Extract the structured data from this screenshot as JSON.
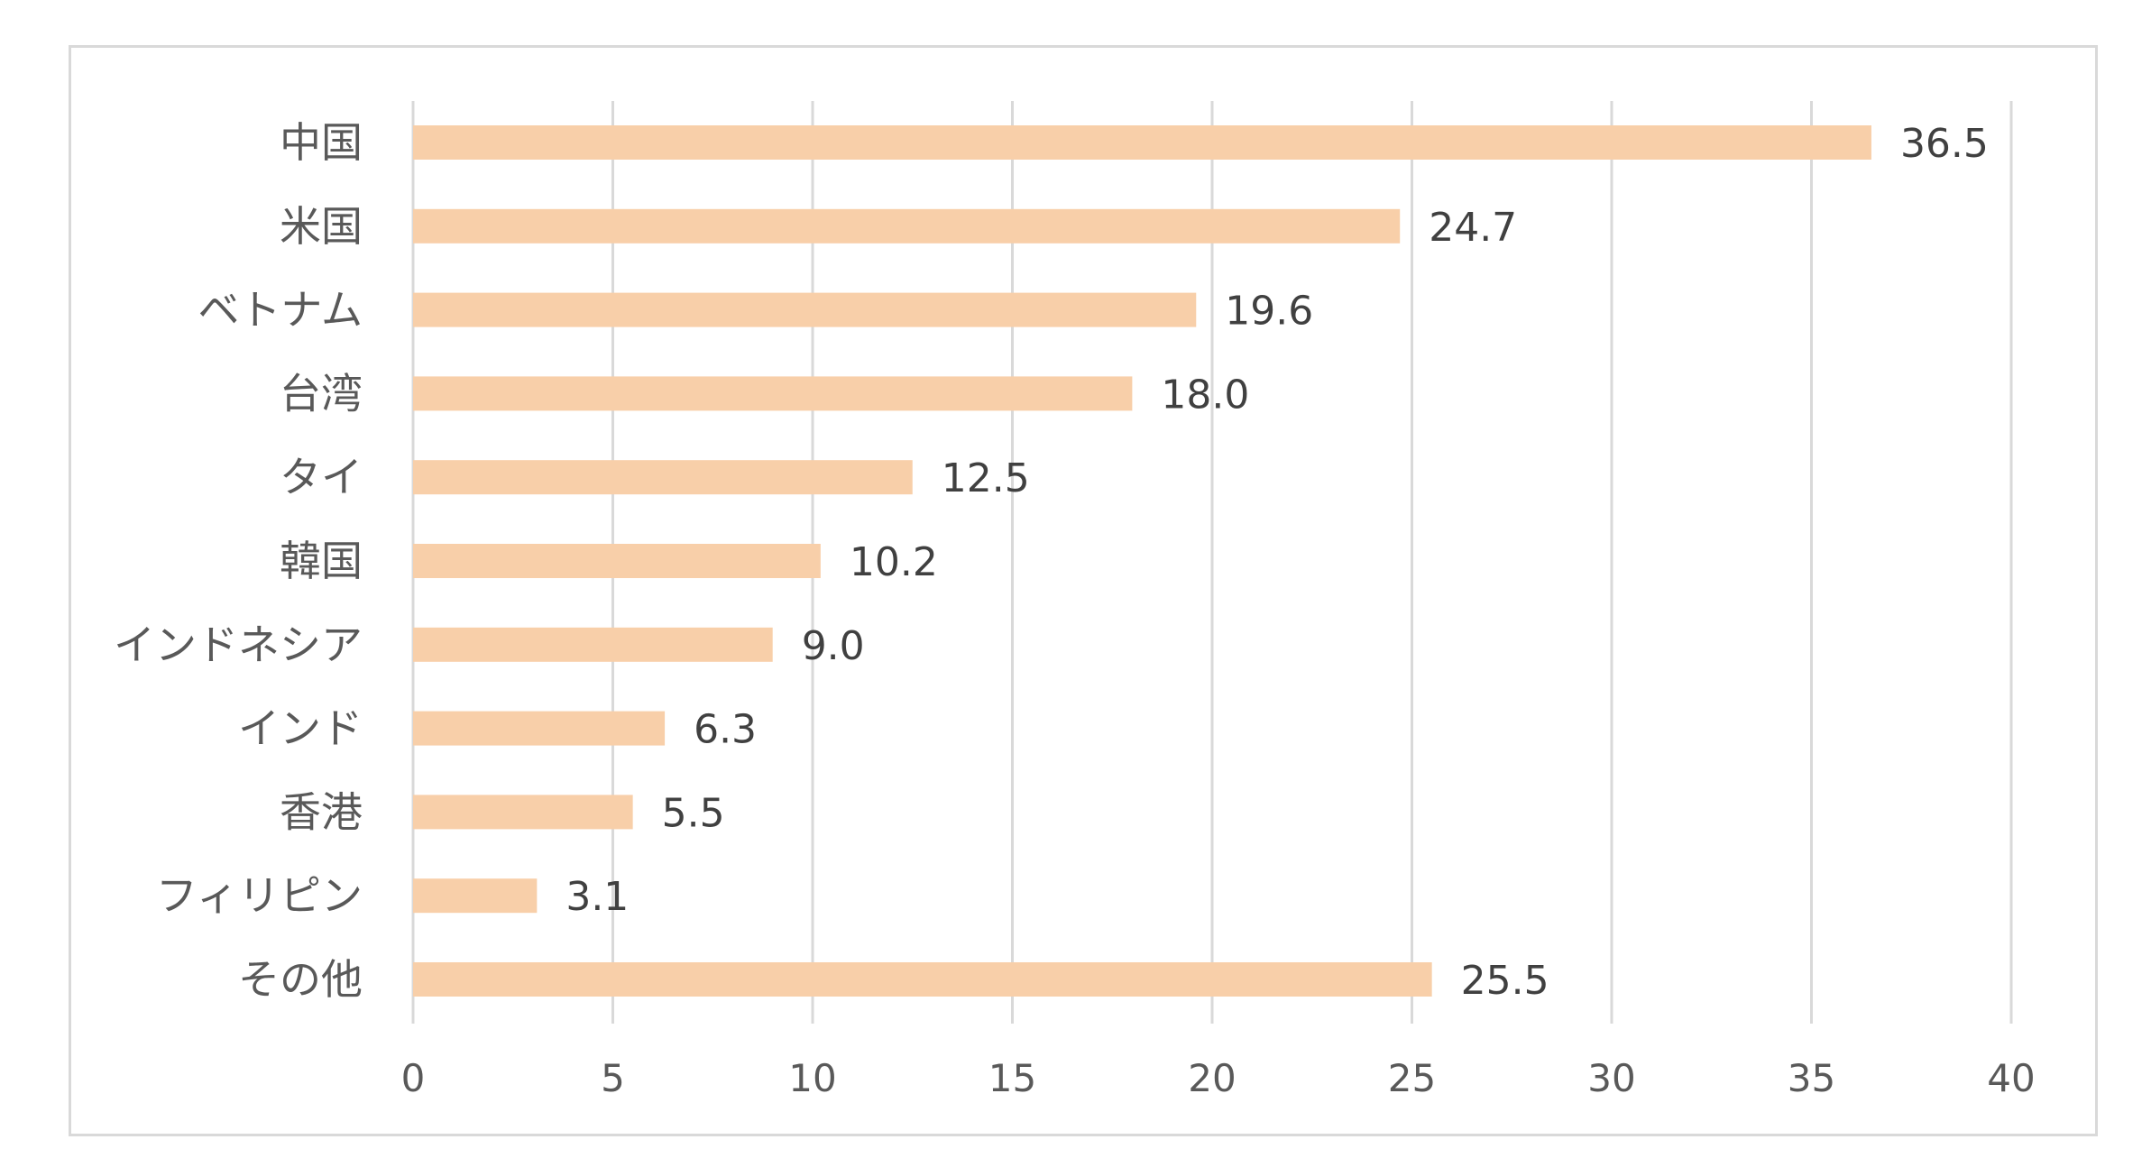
{
  "chart_data": {
    "type": "bar",
    "orientation": "horizontal",
    "title": "",
    "xlabel": "",
    "ylabel": "",
    "categories": [
      "中国",
      "米国",
      "ベトナム",
      "台湾",
      "タイ",
      "韓国",
      "インドネシア",
      "インド",
      "香港",
      "フィリピン",
      "その他"
    ],
    "values": [
      36.5,
      24.7,
      19.6,
      18.0,
      12.5,
      10.2,
      9.0,
      6.3,
      5.5,
      3.1,
      25.5
    ],
    "value_labels": [
      "36.5",
      "24.7",
      "19.6",
      "18.0",
      "12.5",
      "10.2",
      "9.0",
      "6.3",
      "5.5",
      "3.1",
      "25.5"
    ],
    "xlim": [
      0,
      40
    ],
    "xticks": [
      0,
      5,
      10,
      15,
      20,
      25,
      30,
      35,
      40
    ],
    "xtick_labels": [
      "0",
      "5",
      "10",
      "15",
      "20",
      "25",
      "30",
      "35",
      "40"
    ],
    "grid": true,
    "legend": "none",
    "colors": {
      "bar": "#f8cfa9",
      "grid": "#d9d9d9",
      "frame": "#d9d9d9"
    }
  }
}
